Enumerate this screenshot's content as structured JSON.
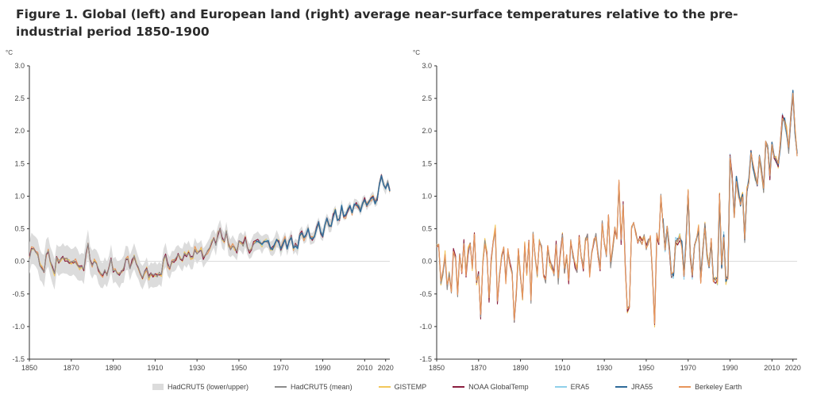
{
  "title": "Figure 1. Global (left) and European land (right) average near-surface temperatures relative to the pre-industrial period 1850-1900",
  "colors": {
    "band": "#dcdcdc",
    "hadcrut_mean": "#8c8c8c",
    "gistemp": "#f2c75a",
    "noaa": "#8b1e3f",
    "era5": "#8fd0ea",
    "jra55": "#2e6a99",
    "berkeley": "#e8955a",
    "axis": "#333333",
    "zero": "#d8d8d8"
  },
  "legend": [
    {
      "label": "HadCRUT5 (lower/upper)",
      "kind": "band",
      "color": "#dcdcdc"
    },
    {
      "label": "HadCRUT5 (mean)",
      "kind": "line",
      "color": "#8c8c8c"
    },
    {
      "label": "GISTEMP",
      "kind": "line",
      "color": "#f2c75a"
    },
    {
      "label": "NOAA GlobalTemp",
      "kind": "line",
      "color": "#8b1e3f"
    },
    {
      "label": "ERA5",
      "kind": "line",
      "color": "#8fd0ea"
    },
    {
      "label": "JRA55",
      "kind": "line",
      "color": "#2e6a99"
    },
    {
      "label": "Berkeley Earth",
      "kind": "line",
      "color": "#e8955a"
    }
  ],
  "chart_data": [
    {
      "type": "line",
      "ylabel": "°C",
      "xlim": [
        1850,
        2022
      ],
      "ylim": [
        -1.5,
        3.0
      ],
      "xticks": [
        1850,
        1870,
        1890,
        1910,
        1930,
        1950,
        1970,
        1990,
        2010,
        2020
      ],
      "yticks": [
        "3.0",
        "2.5",
        "2.0",
        "1.5",
        "1.0",
        "0.5",
        "0.0",
        "-0.5",
        "-1.0",
        "-1.5"
      ],
      "series": [
        {
          "name": "HadCRUT5 (mean)",
          "x_start": 1850,
          "values": [
            0.05,
            0.2,
            0.18,
            0.15,
            0.1,
            -0.05,
            -0.1,
            -0.15,
            0.1,
            0.15,
            0.0,
            -0.1,
            -0.2,
            0.05,
            0.0,
            0.02,
            0.05,
            0.02,
            0.03,
            0.0,
            -0.02,
            0.0,
            0.0,
            -0.05,
            -0.1,
            -0.08,
            -0.12,
            0.12,
            0.28,
            0.02,
            -0.05,
            0.0,
            -0.02,
            -0.12,
            -0.2,
            -0.22,
            -0.14,
            -0.2,
            -0.1,
            0.05,
            -0.15,
            -0.12,
            -0.18,
            -0.2,
            -0.15,
            -0.12,
            0.05,
            0.05,
            -0.1,
            0.0,
            0.08,
            -0.02,
            -0.1,
            -0.2,
            -0.25,
            -0.18,
            -0.1,
            -0.25,
            -0.2,
            -0.22,
            -0.2,
            -0.22,
            -0.18,
            -0.22,
            0.02,
            0.1,
            -0.05,
            -0.1,
            0.0,
            0.0,
            0.05,
            0.1,
            0.05,
            0.02,
            0.12,
            0.08,
            0.14,
            0.05,
            0.05,
            0.2,
            0.12,
            0.15,
            0.18,
            0.05,
            0.1,
            0.15,
            0.2,
            0.3,
            0.35,
            0.25,
            0.42,
            0.5,
            0.35,
            0.3,
            0.48,
            0.25,
            0.2,
            0.25,
            0.2,
            0.15,
            0.3,
            0.3,
            0.25,
            0.35,
            0.22,
            0.15,
            0.2,
            0.28,
            0.3,
            0.32,
            0.3,
            0.25,
            0.3,
            0.32,
            0.3,
            0.2,
            0.2,
            0.25,
            0.35,
            0.3,
            0.18,
            0.28,
            0.35,
            0.2,
            0.3,
            0.38,
            0.2,
            0.25,
            0.2,
            0.4,
            0.45,
            0.35,
            0.4,
            0.5,
            0.35,
            0.35,
            0.38,
            0.5,
            0.6,
            0.45,
            0.4,
            0.55,
            0.65,
            0.55,
            0.55,
            0.7,
            0.78,
            0.62,
            0.65,
            0.85,
            0.7,
            0.7,
            0.8,
            0.85,
            0.75,
            0.88,
            0.88,
            0.85,
            0.78,
            0.9,
            0.95,
            0.85,
            0.9,
            0.95,
            1.0,
            0.9,
            0.95,
            1.18,
            1.3,
            1.18,
            1.1,
            1.22,
            1.08
          ]
        },
        {
          "name": "European land (all datasets)",
          "x_start": 1850,
          "values": [
            0.2,
            0.25,
            -0.3,
            -0.15,
            0.1,
            -0.4,
            -0.2,
            -0.45,
            0.15,
            0.05,
            -0.5,
            0.1,
            -0.2,
            0.3,
            -0.2,
            0.15,
            0.3,
            -0.1,
            0.45,
            -0.3,
            -0.2,
            -0.85,
            0.0,
            0.3,
            0.1,
            -0.6,
            0.0,
            0.3,
            0.5,
            -0.65,
            -0.2,
            0.1,
            0.2,
            -0.3,
            0.15,
            -0.05,
            -0.2,
            -0.9,
            -0.5,
            0.15,
            -0.2,
            -0.55,
            0.25,
            -0.2,
            0.3,
            -0.6,
            0.4,
            0.1,
            -0.2,
            0.3,
            0.25,
            -0.2,
            -0.3,
            0.2,
            0.0,
            -0.1,
            -0.2,
            0.3,
            -0.3,
            0.1,
            0.4,
            -0.15,
            0.1,
            -0.3,
            0.3,
            0.1,
            -0.05,
            -0.15,
            0.4,
            0.1,
            -0.1,
            0.3,
            0.4,
            -0.2,
            0.15,
            0.3,
            0.4,
            0.1,
            -0.1,
            0.6,
            0.3,
            0.1,
            0.7,
            -0.05,
            0.2,
            0.5,
            0.35,
            1.2,
            0.3,
            0.9,
            -0.1,
            -0.75,
            -0.7,
            0.5,
            0.6,
            0.45,
            0.3,
            0.35,
            0.3,
            0.4,
            0.2,
            0.3,
            0.35,
            -0.2,
            -0.95,
            0.4,
            0.3,
            1.0,
            0.6,
            0.2,
            0.5,
            0.2,
            -0.2,
            -0.2,
            0.3,
            0.3,
            0.35,
            0.25,
            -0.2,
            0.3,
            1.05,
            0.1,
            -0.2,
            0.25,
            0.3,
            0.5,
            -0.3,
            0.15,
            0.55,
            0.1,
            -0.1,
            0.35,
            -0.3,
            -0.3,
            -0.3,
            1.0,
            -0.1,
            0.4,
            -0.3,
            -0.25,
            1.6,
            1.3,
            0.7,
            1.25,
            1.05,
            0.9,
            1.0,
            0.3,
            1.1,
            1.25,
            1.7,
            1.45,
            1.3,
            1.2,
            1.6,
            1.4,
            1.1,
            1.8,
            1.75,
            1.3,
            1.8,
            1.6,
            1.55,
            1.5,
            1.8,
            2.2,
            2.15,
            2.0,
            1.7,
            2.2,
            2.6,
            2.0,
            1.65
          ]
        }
      ],
      "band_halfwidth_early": 0.22,
      "band_halfwidth_late": 0.04
    }
  ]
}
